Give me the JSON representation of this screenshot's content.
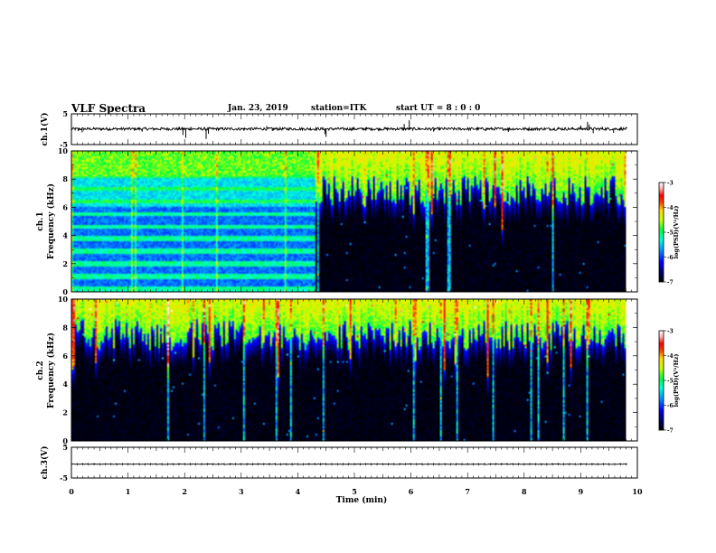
{
  "header": {
    "title": "VLF Spectra",
    "date": "Jan. 23, 2019",
    "station": "station=ITK",
    "start": "start  UT  =   8 : 0  : 0"
  },
  "chart_data": [
    {
      "id": "waveform-ch1",
      "type": "line",
      "ylabel": "ch.1(V)",
      "ylim": [
        -5,
        5
      ],
      "yticks": [
        "5",
        "-5"
      ],
      "xlim": [
        0,
        10
      ],
      "baseline": 0.1,
      "spikes": [
        [
          0.12,
          -0.6
        ],
        [
          0.19,
          -1.0
        ],
        [
          0.65,
          -0.5
        ],
        [
          1.25,
          -0.8
        ],
        [
          1.58,
          0.5
        ],
        [
          1.97,
          -1.9
        ],
        [
          2.02,
          -2.8
        ],
        [
          2.12,
          0.7
        ],
        [
          2.38,
          -3.2
        ],
        [
          2.42,
          -1.5
        ],
        [
          3.05,
          -0.5
        ],
        [
          3.45,
          1.0
        ],
        [
          3.55,
          -0.6
        ],
        [
          4.48,
          -1.6
        ],
        [
          4.5,
          -2.5
        ],
        [
          4.95,
          -0.5
        ],
        [
          5.2,
          0.6
        ],
        [
          5.88,
          1.7
        ],
        [
          5.97,
          2.9
        ],
        [
          6.4,
          -0.8
        ],
        [
          7.32,
          -0.6
        ],
        [
          7.72,
          -0.9
        ],
        [
          8.6,
          0.7
        ],
        [
          9.0,
          1.2
        ],
        [
          9.12,
          2.4
        ],
        [
          9.15,
          1.5
        ],
        [
          9.22,
          -1.3
        ],
        [
          9.38,
          0.8
        ],
        [
          9.58,
          -1.2
        ]
      ]
    },
    {
      "id": "spectrogram-ch1",
      "type": "heatmap",
      "ylabel": "ch.1\nFrequency (kHz)",
      "ylim": [
        0,
        10
      ],
      "yticks": [
        "0",
        "2",
        "4",
        "6",
        "8",
        "10"
      ],
      "xlim": [
        0,
        10
      ],
      "colorbar": {
        "label": "log(PSD)(V²/Hz)",
        "range": [
          -7,
          -3
        ],
        "ticks": [
          "-3",
          "-4",
          "-5",
          "-6",
          "-7"
        ]
      },
      "segments": [
        {
          "t_range": [
            0,
            4.3
          ],
          "pattern": "banded",
          "band_spacing_khz": 0.9,
          "band_top_khz": 10,
          "band_bottom_khz": 0.3
        },
        {
          "t_range": [
            4.3,
            9.8
          ],
          "pattern": "noise",
          "mean_cutoff_khz": 7.3,
          "top_khz": 10
        }
      ],
      "data_extent": [
        0,
        9.8
      ]
    },
    {
      "id": "spectrogram-ch2",
      "type": "heatmap",
      "ylabel": "ch.2\nFrequency (kHz)",
      "ylim": [
        0,
        10
      ],
      "yticks": [
        "0",
        "2",
        "4",
        "6",
        "8",
        "10"
      ],
      "xlim": [
        0,
        10
      ],
      "colorbar": {
        "label": "log(PSD)(V²/Hz)",
        "range": [
          -7,
          -3
        ],
        "ticks": [
          "-3",
          "-4",
          "-5",
          "-6",
          "-7"
        ]
      },
      "segments": [
        {
          "t_range": [
            0,
            9.8
          ],
          "pattern": "noise",
          "mean_cutoff_khz": 7.6,
          "top_khz": 10
        }
      ],
      "data_extent": [
        0,
        9.8
      ]
    },
    {
      "id": "waveform-ch3",
      "type": "line",
      "ylabel": "ch.3(V)",
      "ylim": [
        -5,
        5
      ],
      "yticks": [
        "5",
        "-5"
      ],
      "xlim": [
        0,
        10
      ],
      "baseline": -0.5,
      "spikes": []
    }
  ],
  "x_axis": {
    "label": "Time (min)",
    "ticks": [
      "0",
      "1",
      "2",
      "3",
      "4",
      "5",
      "6",
      "7",
      "8",
      "9",
      "10"
    ]
  },
  "colormap": [
    "#000000",
    "#00006e",
    "#0000ff",
    "#0096ff",
    "#00ffe0",
    "#00ff40",
    "#c8ff00",
    "#ffdc00",
    "#ff4000",
    "#ff0000",
    "#ffb4b4",
    "#ffffff"
  ]
}
